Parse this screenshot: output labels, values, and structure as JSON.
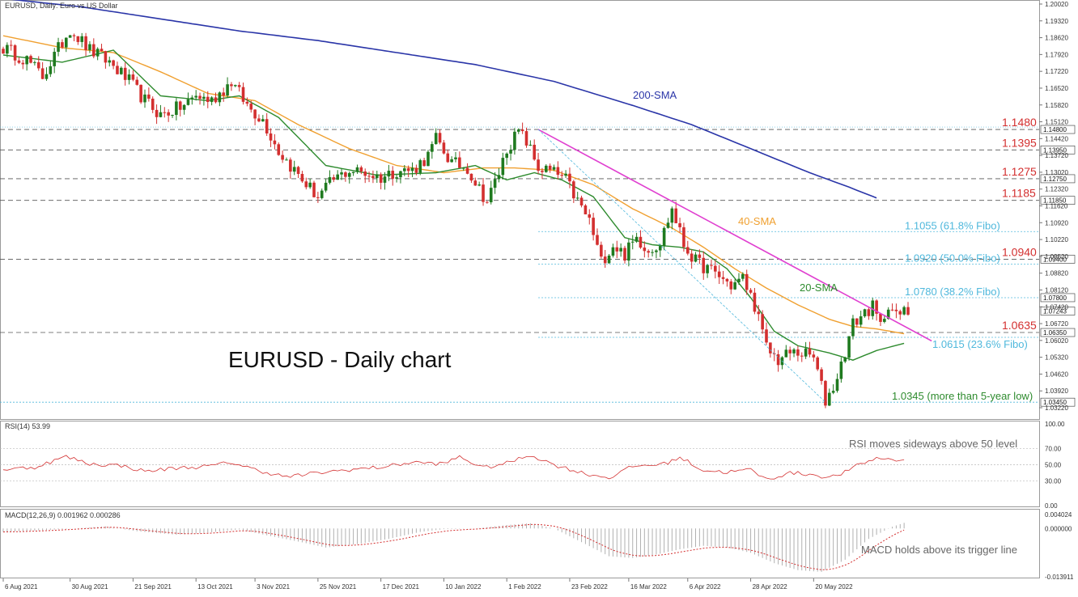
{
  "header": {
    "symbol_line": "EURUSD, Daily:  Euro vs US Dollar",
    "chart_title": "EURUSD - Daily chart"
  },
  "colors": {
    "bull": "#1f7a1f",
    "bear": "#d32f2f",
    "sma20": "#2e8b2e",
    "sma40": "#f0a030",
    "sma200": "#2a35a8",
    "trendline": "#e040d0",
    "fibo": "#4fb8dc",
    "level_label": "#d32f2f",
    "rsi_line": "#d32f2f",
    "macd_signal": "#d32f2f",
    "macd_hist": "#b0b0b0"
  },
  "price_axis": {
    "min": 1.029,
    "max": 1.203,
    "ticks": [
      "1.20020",
      "1.19320",
      "1.18620",
      "1.17920",
      "1.17220",
      "1.16520",
      "1.15820",
      "1.15120",
      "1.14420",
      "1.13720",
      "1.13020",
      "1.12320",
      "1.11620",
      "1.10920",
      "1.10220",
      "1.09520",
      "1.08820",
      "1.08120",
      "1.07420",
      "1.06720",
      "1.06020",
      "1.05320",
      "1.04620",
      "1.03920",
      "1.03220"
    ],
    "tick_values": [
      1.2002,
      1.1932,
      1.1862,
      1.1792,
      1.1722,
      1.1652,
      1.1582,
      1.1512,
      1.1442,
      1.1372,
      1.1302,
      1.1232,
      1.1162,
      1.1092,
      1.1022,
      1.0952,
      1.0882,
      1.0812,
      1.0742,
      1.0672,
      1.0602,
      1.0532,
      1.0462,
      1.0392,
      1.0322
    ],
    "box_labels": [
      {
        "text": "1.14800",
        "value": 1.148,
        "fill": "#ffffff"
      },
      {
        "text": "1.13950",
        "value": 1.1395,
        "fill": "#ffffff"
      },
      {
        "text": "1.12750",
        "value": 1.1275,
        "fill": "#ffffff"
      },
      {
        "text": "1.11850",
        "value": 1.1185,
        "fill": "#ffffff"
      },
      {
        "text": "1.09400",
        "value": 1.094,
        "fill": "#ffffff"
      },
      {
        "text": "1.07800",
        "value": 1.078,
        "fill": "#ffffff"
      },
      {
        "text": "1.07243",
        "value": 1.07243,
        "fill": "#ffffff"
      },
      {
        "text": "1.06350",
        "value": 1.0635,
        "fill": "#ffffff"
      },
      {
        "text": "1.03450",
        "value": 1.0345,
        "fill": "#ffffff"
      }
    ]
  },
  "x_axis": {
    "labels": [
      {
        "text": "6 Aug 2021",
        "idx": 0
      },
      {
        "text": "30 Aug 2021",
        "idx": 17
      },
      {
        "text": "21 Sep 2021",
        "idx": 33
      },
      {
        "text": "13 Oct 2021",
        "idx": 49
      },
      {
        "text": "3 Nov 2021",
        "idx": 64
      },
      {
        "text": "25 Nov 2021",
        "idx": 80
      },
      {
        "text": "17 Dec 2021",
        "idx": 96
      },
      {
        "text": "10 Jan 2022",
        "idx": 112
      },
      {
        "text": "1 Feb 2022",
        "idx": 128
      },
      {
        "text": "23 Feb 2022",
        "idx": 144
      },
      {
        "text": "16 Mar 2022",
        "idx": 159
      },
      {
        "text": "6 Apr 2022",
        "idx": 174
      },
      {
        "text": "28 Apr 2022",
        "idx": 190
      },
      {
        "text": "20 May 2022",
        "idx": 206
      }
    ]
  },
  "levels": [
    {
      "label": "1.1480",
      "value": 1.148
    },
    {
      "label": "1.1395",
      "value": 1.1395
    },
    {
      "label": "1.1275",
      "value": 1.1275
    },
    {
      "label": "1.1185",
      "value": 1.1185
    },
    {
      "label": "1.0940",
      "value": 1.094
    },
    {
      "label": "1.0635",
      "value": 1.0635
    }
  ],
  "fibo_levels": [
    {
      "label": "1.1055 (61.8% Fibo)",
      "value": 1.1055
    },
    {
      "label": "1.0920 (50.0% Fibo)",
      "value": 1.092
    },
    {
      "label": "1.0780 (38.2% Fibo)",
      "value": 1.078
    },
    {
      "label": "1.0615 (23.6% Fibo)",
      "value": 1.0615
    },
    {
      "label": "1.0345 (more than 5-year low)",
      "value": 1.0345
    }
  ],
  "annotations": {
    "sma200": "200-SMA",
    "sma40": "40-SMA",
    "sma20": "20-SMA"
  },
  "rsi": {
    "header": "RSI(14) 53.99",
    "note": "RSI moves sideways above 50 level",
    "axis": [
      "100.00",
      "70.00",
      "50.00",
      "30.00",
      "0.00"
    ],
    "axis_values": [
      100,
      70,
      50,
      30,
      0
    ]
  },
  "macd": {
    "header": "MACD(12,26,9) 0.001962 0.000286",
    "note": "MACD holds above its trigger line",
    "axis": [
      "0.004024",
      "0.000000",
      "-0.013911"
    ],
    "axis_values": [
      0.004024,
      0,
      -0.013911
    ]
  },
  "chart_data": {
    "type": "candlestick",
    "series_names": [
      "20-SMA",
      "40-SMA",
      "200-SMA"
    ],
    "anchors": [
      [
        0,
        1.182
      ],
      [
        6,
        1.177
      ],
      [
        10,
        1.17
      ],
      [
        17,
        1.19
      ],
      [
        22,
        1.181
      ],
      [
        27,
        1.176
      ],
      [
        32,
        1.168
      ],
      [
        36,
        1.16
      ],
      [
        40,
        1.154
      ],
      [
        46,
        1.158
      ],
      [
        49,
        1.162
      ],
      [
        53,
        1.16
      ],
      [
        58,
        1.168
      ],
      [
        62,
        1.158
      ],
      [
        66,
        1.152
      ],
      [
        70,
        1.139
      ],
      [
        76,
        1.127
      ],
      [
        80,
        1.12
      ],
      [
        84,
        1.127
      ],
      [
        88,
        1.131
      ],
      [
        92,
        1.13
      ],
      [
        96,
        1.128
      ],
      [
        100,
        1.131
      ],
      [
        104,
        1.131
      ],
      [
        108,
        1.137
      ],
      [
        110,
        1.144
      ],
      [
        114,
        1.134
      ],
      [
        118,
        1.132
      ],
      [
        120,
        1.126
      ],
      [
        123,
        1.118
      ],
      [
        126,
        1.13
      ],
      [
        128,
        1.14
      ],
      [
        131,
        1.147
      ],
      [
        133,
        1.143
      ],
      [
        136,
        1.132
      ],
      [
        140,
        1.13
      ],
      [
        143,
        1.127
      ],
      [
        146,
        1.118
      ],
      [
        149,
        1.11
      ],
      [
        152,
        1.093
      ],
      [
        155,
        1.1
      ],
      [
        158,
        1.096
      ],
      [
        161,
        1.103
      ],
      [
        164,
        1.098
      ],
      [
        167,
        1.101
      ],
      [
        170,
        1.115
      ],
      [
        173,
        1.1
      ],
      [
        176,
        1.093
      ],
      [
        179,
        1.09
      ],
      [
        182,
        1.087
      ],
      [
        185,
        1.083
      ],
      [
        188,
        1.086
      ],
      [
        191,
        1.075
      ],
      [
        194,
        1.057
      ],
      [
        197,
        1.052
      ],
      [
        200,
        1.055
      ],
      [
        203,
        1.055
      ],
      [
        206,
        1.053
      ],
      [
        209,
        1.035
      ],
      [
        211,
        1.041
      ],
      [
        213,
        1.05
      ],
      [
        216,
        1.067
      ],
      [
        219,
        1.072
      ],
      [
        221,
        1.074
      ],
      [
        223,
        1.066
      ],
      [
        225,
        1.076
      ],
      [
        227,
        1.07
      ],
      [
        229,
        1.072
      ]
    ],
    "sma20": [
      [
        0,
        1.179
      ],
      [
        15,
        1.176
      ],
      [
        28,
        1.181
      ],
      [
        40,
        1.162
      ],
      [
        52,
        1.16
      ],
      [
        60,
        1.162
      ],
      [
        70,
        1.153
      ],
      [
        82,
        1.133
      ],
      [
        95,
        1.129
      ],
      [
        110,
        1.13
      ],
      [
        120,
        1.133
      ],
      [
        128,
        1.127
      ],
      [
        135,
        1.13
      ],
      [
        142,
        1.127
      ],
      [
        150,
        1.12
      ],
      [
        158,
        1.103
      ],
      [
        165,
        1.1
      ],
      [
        172,
        1.099
      ],
      [
        178,
        1.097
      ],
      [
        184,
        1.09
      ],
      [
        190,
        1.078
      ],
      [
        196,
        1.064
      ],
      [
        202,
        1.058
      ],
      [
        210,
        1.055
      ],
      [
        216,
        1.052
      ],
      [
        222,
        1.056
      ],
      [
        229,
        1.059
      ]
    ],
    "sma40": [
      [
        0,
        1.187
      ],
      [
        15,
        1.182
      ],
      [
        28,
        1.18
      ],
      [
        40,
        1.172
      ],
      [
        52,
        1.163
      ],
      [
        64,
        1.16
      ],
      [
        75,
        1.15
      ],
      [
        88,
        1.14
      ],
      [
        100,
        1.133
      ],
      [
        112,
        1.13
      ],
      [
        122,
        1.132
      ],
      [
        130,
        1.132
      ],
      [
        140,
        1.131
      ],
      [
        150,
        1.125
      ],
      [
        160,
        1.115
      ],
      [
        170,
        1.107
      ],
      [
        178,
        1.099
      ],
      [
        186,
        1.09
      ],
      [
        194,
        1.082
      ],
      [
        202,
        1.075
      ],
      [
        210,
        1.069
      ],
      [
        216,
        1.066
      ],
      [
        222,
        1.065
      ],
      [
        229,
        1.063
      ]
    ],
    "sma200": [
      [
        0,
        1.2025
      ],
      [
        20,
        1.199
      ],
      [
        40,
        1.194
      ],
      [
        60,
        1.189
      ],
      [
        80,
        1.185
      ],
      [
        100,
        1.18
      ],
      [
        120,
        1.175
      ],
      [
        140,
        1.168
      ],
      [
        160,
        1.158
      ],
      [
        175,
        1.15
      ],
      [
        190,
        1.14
      ],
      [
        205,
        1.13
      ],
      [
        215,
        1.124
      ],
      [
        222,
        1.1195
      ]
    ],
    "trendline": {
      "from": [
        136,
        1.148
      ],
      "to": [
        236,
        1.06
      ]
    },
    "fibo_diagonal": {
      "from": [
        136,
        1.148
      ],
      "to": [
        209,
        1.0345
      ]
    },
    "rsi_anchors": [
      [
        0,
        44
      ],
      [
        8,
        47
      ],
      [
        16,
        60
      ],
      [
        22,
        51
      ],
      [
        30,
        49
      ],
      [
        36,
        42
      ],
      [
        44,
        46
      ],
      [
        52,
        48
      ],
      [
        58,
        53
      ],
      [
        64,
        44
      ],
      [
        72,
        35
      ],
      [
        80,
        40
      ],
      [
        88,
        44
      ],
      [
        96,
        47
      ],
      [
        104,
        53
      ],
      [
        112,
        51
      ],
      [
        116,
        60
      ],
      [
        122,
        46
      ],
      [
        128,
        52
      ],
      [
        134,
        62
      ],
      [
        140,
        50
      ],
      [
        148,
        39
      ],
      [
        154,
        34
      ],
      [
        160,
        48
      ],
      [
        168,
        51
      ],
      [
        172,
        59
      ],
      [
        178,
        43
      ],
      [
        184,
        41
      ],
      [
        190,
        44
      ],
      [
        194,
        32
      ],
      [
        200,
        40
      ],
      [
        206,
        38
      ],
      [
        210,
        34
      ],
      [
        214,
        41
      ],
      [
        218,
        51
      ],
      [
        222,
        58
      ],
      [
        226,
        57
      ],
      [
        228,
        55
      ],
      [
        230,
        54
      ]
    ],
    "macd_anchors": [
      [
        0,
        -0.001
      ],
      [
        10,
        -0.0005
      ],
      [
        18,
        0.0
      ],
      [
        26,
        0.0006
      ],
      [
        34,
        -0.0008
      ],
      [
        44,
        -0.0018
      ],
      [
        52,
        -0.0012
      ],
      [
        60,
        -0.0003
      ],
      [
        68,
        -0.0022
      ],
      [
        76,
        -0.004
      ],
      [
        82,
        -0.0055
      ],
      [
        90,
        -0.0045
      ],
      [
        98,
        -0.003
      ],
      [
        106,
        -0.001
      ],
      [
        112,
        -0.0002
      ],
      [
        120,
        0.0
      ],
      [
        128,
        0.001
      ],
      [
        134,
        0.0015
      ],
      [
        140,
        0.0
      ],
      [
        148,
        -0.0045
      ],
      [
        154,
        -0.008
      ],
      [
        160,
        -0.0085
      ],
      [
        166,
        -0.0075
      ],
      [
        172,
        -0.006
      ],
      [
        178,
        -0.005
      ],
      [
        184,
        -0.0055
      ],
      [
        190,
        -0.007
      ],
      [
        196,
        -0.01
      ],
      [
        202,
        -0.012
      ],
      [
        208,
        -0.0125
      ],
      [
        214,
        -0.009
      ],
      [
        220,
        -0.003
      ],
      [
        226,
        0.0005
      ],
      [
        230,
        0.002
      ]
    ],
    "count": 231
  }
}
